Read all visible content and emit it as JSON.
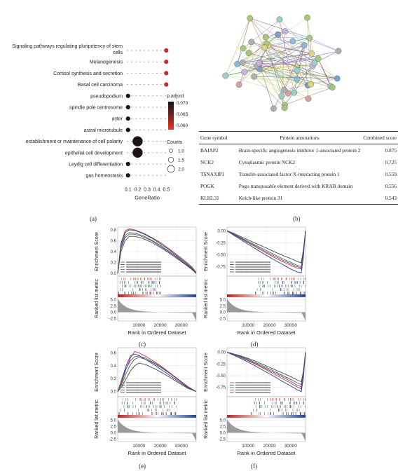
{
  "panel_a": {
    "letter": "(a)",
    "xlabel": "GeneRatio",
    "xticks": [
      "0.1",
      "0.2",
      "0.3",
      "0.4",
      "0.5"
    ],
    "terms": [
      {
        "label_lines": [
          "Signaling pathways regulating pluripotency of stem",
          "cells"
        ],
        "ratio": 0.5,
        "count": 1,
        "padj": 0.06
      },
      {
        "label_lines": [
          "Melanogenesis"
        ],
        "ratio": 0.5,
        "count": 1,
        "padj": 0.06
      },
      {
        "label_lines": [
          "Cortisol synthesis and secretion"
        ],
        "ratio": 0.5,
        "count": 1,
        "padj": 0.061
      },
      {
        "label_lines": [
          "Basal cell carcinoma"
        ],
        "ratio": 0.5,
        "count": 1,
        "padj": 0.061
      },
      {
        "label_lines": [
          "pseudopodium"
        ],
        "ratio": 0.1,
        "count": 1,
        "padj": 0.072
      },
      {
        "label_lines": [
          "spindle pole centrosome"
        ],
        "ratio": 0.1,
        "count": 1,
        "padj": 0.072
      },
      {
        "label_lines": [
          "aster"
        ],
        "ratio": 0.1,
        "count": 1,
        "padj": 0.072
      },
      {
        "label_lines": [
          "astral microtubule"
        ],
        "ratio": 0.1,
        "count": 1,
        "padj": 0.072
      },
      {
        "label_lines": [
          "establishment or maintenance of cell polarity"
        ],
        "ratio": 0.2,
        "count": 2,
        "padj": 0.072
      },
      {
        "label_lines": [
          "epithelial cell development"
        ],
        "ratio": 0.2,
        "count": 2,
        "padj": 0.072
      },
      {
        "label_lines": [
          "Leydig cell differentiation"
        ],
        "ratio": 0.1,
        "count": 1,
        "padj": 0.072
      },
      {
        "label_lines": [
          "gas homeostasis"
        ],
        "ratio": 0.1,
        "count": 1,
        "padj": 0.072
      }
    ],
    "legend_color_title": "p.adjust",
    "legend_color_ticks": [
      "0.070",
      "0.065",
      "0.060"
    ],
    "legend_size_title": "Counts",
    "legend_size_ticks": [
      "1.0",
      "1.5",
      "2.0"
    ],
    "colors": {
      "low": "#e8352a",
      "high": "#111111"
    }
  },
  "panel_b": {
    "letter": "(b)",
    "table": {
      "headers": [
        "Gene symbol",
        "Protein annotations",
        "Combined score"
      ],
      "rows": [
        [
          "BAIAP2",
          "Brain-specific angiogenesis inhibitor 1-associated protein 2",
          "0.875"
        ],
        [
          "NCK2",
          "Cytoplasmic protein NCK2",
          "0.725"
        ],
        [
          "TSNAXIP1",
          "Translin-associated factor X-interacting protein 1",
          "0.559"
        ],
        [
          "POGK",
          "Pogo transposable element derived with KRAB domain",
          "0.556"
        ],
        [
          "KLHL31",
          "Kelch-like protein 31",
          "0.543"
        ]
      ]
    }
  },
  "gsea_common": {
    "ylabel_top": "Enrichment Score",
    "ylabel_bottom": "Ranked list metric",
    "xlabel": "Rank in Ordered Dataset",
    "xticks": [
      "10000",
      "20000",
      "30000"
    ],
    "bottom_yticks": [
      "5.0",
      "2.5",
      "0.0",
      "-2.5"
    ]
  },
  "chart_data": [
    {
      "type": "line",
      "panel": "(c)",
      "yticks": [
        "0.8",
        "0.6",
        "0.4",
        "0.2",
        "0.0"
      ],
      "ylim": [
        -0.05,
        0.85
      ],
      "xlim": [
        0,
        37000
      ],
      "series": [
        {
          "color": "#c0392b",
          "x": [
            0,
            1500,
            3500,
            5500,
            8000,
            12000,
            16000,
            20000,
            24000,
            28000,
            32000,
            35000,
            37000
          ],
          "y": [
            0,
            0.55,
            0.78,
            0.82,
            0.8,
            0.74,
            0.66,
            0.57,
            0.46,
            0.34,
            0.22,
            0.12,
            0.02
          ]
        },
        {
          "color": "#1f3f8f",
          "x": [
            0,
            1500,
            3500,
            5500,
            8000,
            12000,
            16000,
            20000,
            24000,
            28000,
            32000,
            35000,
            37000
          ],
          "y": [
            0,
            0.52,
            0.75,
            0.8,
            0.79,
            0.73,
            0.65,
            0.55,
            0.44,
            0.32,
            0.2,
            0.1,
            0.0
          ]
        },
        {
          "color": "#2b7a3a",
          "x": [
            0,
            1500,
            3500,
            5500,
            8000,
            12000,
            16000,
            20000,
            24000,
            28000,
            32000,
            35000,
            37000
          ],
          "y": [
            0,
            0.48,
            0.7,
            0.75,
            0.74,
            0.69,
            0.61,
            0.52,
            0.41,
            0.3,
            0.18,
            0.09,
            0.0
          ]
        },
        {
          "color": "#7b3fa0",
          "x": [
            0,
            1500,
            3500,
            5500,
            8000,
            12000,
            16000,
            20000,
            24000,
            28000,
            32000,
            35000,
            37000
          ],
          "y": [
            0,
            0.45,
            0.66,
            0.72,
            0.72,
            0.67,
            0.6,
            0.5,
            0.4,
            0.29,
            0.17,
            0.08,
            0.0
          ]
        },
        {
          "color": "#444444",
          "x": [
            0,
            1500,
            3500,
            5500,
            8000,
            12000,
            16000,
            20000,
            24000,
            28000,
            32000,
            35000,
            37000
          ],
          "y": [
            0,
            0.4,
            0.6,
            0.68,
            0.68,
            0.64,
            0.57,
            0.48,
            0.38,
            0.27,
            0.16,
            0.07,
            0.0
          ]
        }
      ],
      "hits_from": 0.0,
      "hits_to": 0.55,
      "hit_color": "#8c1c1c"
    },
    {
      "type": "line",
      "panel": "(d)",
      "yticks": [
        "0.00",
        "-0.25",
        "-0.50",
        "-0.75"
      ],
      "ylim": [
        -0.95,
        0.08
      ],
      "xlim": [
        0,
        37000
      ],
      "series": [
        {
          "color": "#c0392b",
          "x": [
            0,
            2000,
            6000,
            10000,
            14000,
            18000,
            22000,
            26000,
            30000,
            33000,
            35000,
            36000,
            37000
          ],
          "y": [
            0,
            -0.05,
            -0.15,
            -0.25,
            -0.35,
            -0.45,
            -0.55,
            -0.64,
            -0.72,
            -0.78,
            -0.8,
            -0.5,
            0
          ]
        },
        {
          "color": "#1f3f8f",
          "x": [
            0,
            2000,
            6000,
            10000,
            14000,
            18000,
            22000,
            26000,
            30000,
            33000,
            35000,
            36000,
            37000
          ],
          "y": [
            0,
            -0.06,
            -0.17,
            -0.28,
            -0.39,
            -0.5,
            -0.6,
            -0.7,
            -0.8,
            -0.86,
            -0.88,
            -0.55,
            0
          ]
        },
        {
          "color": "#2b7a3a",
          "x": [
            0,
            2000,
            6000,
            10000,
            14000,
            18000,
            22000,
            26000,
            30000,
            33000,
            35000,
            36000,
            37000
          ],
          "y": [
            0,
            -0.04,
            -0.13,
            -0.22,
            -0.31,
            -0.4,
            -0.49,
            -0.58,
            -0.66,
            -0.72,
            -0.75,
            -0.45,
            0
          ]
        },
        {
          "color": "#7b3fa0",
          "x": [
            0,
            2000,
            6000,
            10000,
            14000,
            18000,
            22000,
            26000,
            30000,
            33000,
            35000,
            36000,
            37000
          ],
          "y": [
            0,
            -0.05,
            -0.14,
            -0.24,
            -0.33,
            -0.43,
            -0.52,
            -0.61,
            -0.69,
            -0.75,
            -0.78,
            -0.48,
            0
          ]
        },
        {
          "color": "#444444",
          "x": [
            0,
            2000,
            6000,
            10000,
            14000,
            18000,
            22000,
            26000,
            30000,
            33000,
            35000,
            36000,
            37000
          ],
          "y": [
            0,
            -0.03,
            -0.11,
            -0.19,
            -0.27,
            -0.35,
            -0.43,
            -0.51,
            -0.58,
            -0.64,
            -0.67,
            -0.4,
            0
          ]
        }
      ],
      "hits_from": 0.35,
      "hits_to": 1.0,
      "hit_color": "#2b2b2b"
    },
    {
      "type": "line",
      "panel": "(e)",
      "yticks": [
        "0.6",
        "0.4",
        "0.2",
        "0.0"
      ],
      "ylim": [
        -0.08,
        0.68
      ],
      "xlim": [
        0,
        37000
      ],
      "series": [
        {
          "color": "#c0392b",
          "x": [
            0,
            2000,
            4000,
            6000,
            8000,
            10000,
            13000,
            17000,
            21000,
            25000,
            29000,
            33000,
            37000
          ],
          "y": [
            0,
            0.15,
            0.35,
            0.52,
            0.62,
            0.6,
            0.55,
            0.47,
            0.38,
            0.28,
            0.18,
            0.08,
            0
          ]
        },
        {
          "color": "#1f3f8f",
          "x": [
            0,
            2000,
            4000,
            6000,
            8000,
            10000,
            13000,
            17000,
            21000,
            25000,
            29000,
            33000,
            37000
          ],
          "y": [
            0,
            0.2,
            0.4,
            0.55,
            0.58,
            0.56,
            0.5,
            0.42,
            0.33,
            0.24,
            0.15,
            0.06,
            0
          ]
        },
        {
          "color": "#2b7a3a",
          "x": [
            0,
            2000,
            4000,
            6000,
            8000,
            10000,
            13000,
            17000,
            21000,
            25000,
            29000,
            33000,
            37000
          ],
          "y": [
            0,
            0.12,
            0.28,
            0.42,
            0.5,
            0.53,
            0.5,
            0.44,
            0.36,
            0.27,
            0.17,
            0.07,
            0
          ]
        },
        {
          "color": "#7b3fa0",
          "x": [
            0,
            2000,
            4000,
            6000,
            8000,
            10000,
            13000,
            17000,
            21000,
            25000,
            29000,
            33000,
            37000
          ],
          "y": [
            0,
            0.18,
            0.36,
            0.48,
            0.54,
            0.55,
            0.52,
            0.45,
            0.37,
            0.27,
            0.17,
            0.07,
            0
          ]
        },
        {
          "color": "#444444",
          "x": [
            0,
            2000,
            4000,
            6000,
            8000,
            10000,
            13000,
            17000,
            21000,
            25000,
            29000,
            33000,
            37000
          ],
          "y": [
            0,
            0.08,
            0.2,
            0.32,
            0.4,
            0.44,
            0.42,
            0.36,
            0.29,
            0.21,
            0.13,
            0.05,
            0
          ]
        }
      ],
      "hits_from": 0.0,
      "hits_to": 0.75,
      "hit_color": "#8c1c1c"
    },
    {
      "type": "line",
      "panel": "(f)",
      "yticks": [
        "0.00",
        "-0.25",
        "-0.50",
        "-0.75"
      ],
      "ylim": [
        -0.95,
        0.1
      ],
      "xlim": [
        0,
        37000
      ],
      "series": [
        {
          "color": "#c0392b",
          "x": [
            0,
            2000,
            6000,
            10000,
            14000,
            18000,
            22000,
            26000,
            30000,
            33000,
            35000,
            36000,
            37000
          ],
          "y": [
            0,
            -0.03,
            -0.1,
            -0.18,
            -0.27,
            -0.36,
            -0.46,
            -0.56,
            -0.66,
            -0.74,
            -0.78,
            -0.5,
            0
          ]
        },
        {
          "color": "#1f3f8f",
          "x": [
            0,
            2000,
            6000,
            10000,
            14000,
            18000,
            22000,
            26000,
            30000,
            33000,
            35000,
            36000,
            37000
          ],
          "y": [
            0,
            -0.04,
            -0.12,
            -0.21,
            -0.31,
            -0.41,
            -0.51,
            -0.62,
            -0.72,
            -0.8,
            -0.84,
            -0.55,
            0
          ]
        },
        {
          "color": "#2b7a3a",
          "x": [
            0,
            2000,
            6000,
            10000,
            14000,
            18000,
            22000,
            26000,
            30000,
            33000,
            35000,
            36000,
            37000
          ],
          "y": [
            0,
            -0.02,
            -0.08,
            -0.15,
            -0.23,
            -0.31,
            -0.4,
            -0.49,
            -0.58,
            -0.65,
            -0.69,
            -0.45,
            0
          ]
        },
        {
          "color": "#7b3fa0",
          "x": [
            0,
            2000,
            6000,
            10000,
            14000,
            18000,
            22000,
            26000,
            30000,
            33000,
            35000,
            36000,
            37000
          ],
          "y": [
            0,
            -0.03,
            -0.09,
            -0.17,
            -0.25,
            -0.34,
            -0.43,
            -0.52,
            -0.62,
            -0.7,
            -0.74,
            -0.48,
            0
          ]
        },
        {
          "color": "#444444",
          "x": [
            0,
            2000,
            6000,
            10000,
            14000,
            18000,
            22000,
            26000,
            30000,
            33000,
            35000,
            36000,
            37000
          ],
          "y": [
            0,
            -0.02,
            -0.07,
            -0.13,
            -0.2,
            -0.28,
            -0.36,
            -0.44,
            -0.52,
            -0.59,
            -0.63,
            -0.4,
            0
          ]
        }
      ],
      "hits_from": 0.3,
      "hits_to": 1.0,
      "hit_color": "#2b2b2b"
    }
  ]
}
